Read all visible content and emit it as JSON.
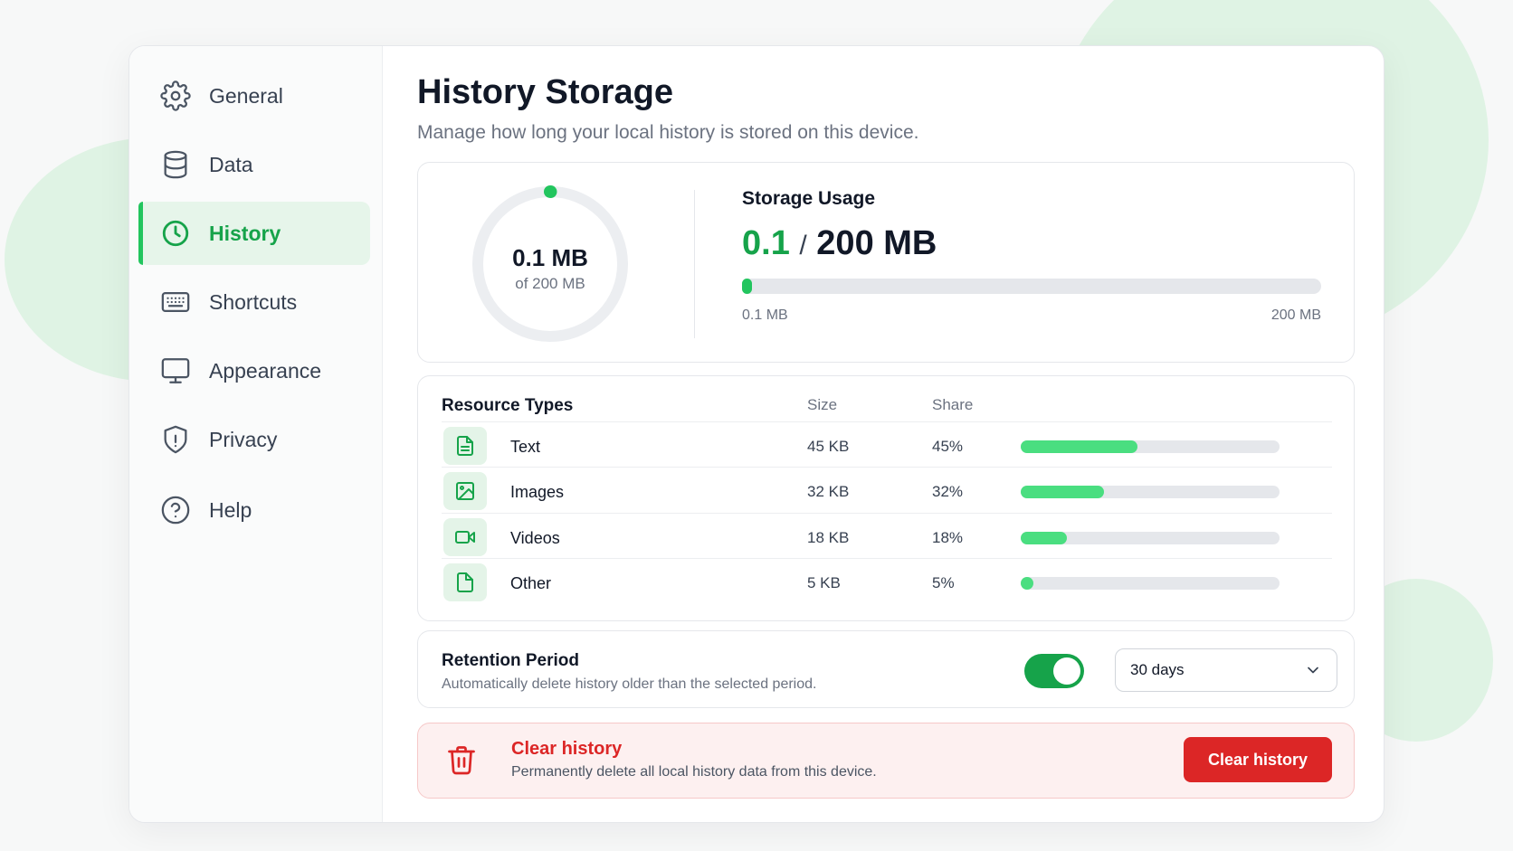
{
  "colors": {
    "accent": "#16a34a",
    "accent_light": "#22c55e",
    "danger": "#dc2626"
  },
  "sidebar": {
    "items": [
      {
        "label": "General",
        "icon": "gear-icon",
        "active": false
      },
      {
        "label": "Data",
        "icon": "database-icon",
        "active": false
      },
      {
        "label": "History",
        "icon": "clock-icon",
        "active": true
      },
      {
        "label": "Shortcuts",
        "icon": "keyboard-icon",
        "active": false
      },
      {
        "label": "Appearance",
        "icon": "monitor-icon",
        "active": false
      },
      {
        "label": "Privacy",
        "icon": "shield-icon",
        "active": false
      },
      {
        "label": "Help",
        "icon": "help-circle-icon",
        "active": false
      }
    ]
  },
  "main": {
    "title": "History Storage",
    "subtitle": "Manage how long your local history is stored on this device."
  },
  "usage": {
    "donut_value": "0.1 MB",
    "donut_sub": "of 200 MB",
    "title": "Storage Usage",
    "used": "0.1",
    "separator": "/",
    "total": "200 MB",
    "fraction": 0.0005,
    "min_label": "0.1 MB",
    "max_label": "200 MB"
  },
  "resources": {
    "title": "Resource Types",
    "col_size": "Size",
    "col_share": "Share",
    "rows": [
      {
        "name": "Text",
        "size": "45 KB",
        "share": "45%",
        "fraction": 0.45,
        "icon": "file-text-icon"
      },
      {
        "name": "Images",
        "size": "32 KB",
        "share": "32%",
        "fraction": 0.32,
        "icon": "image-icon"
      },
      {
        "name": "Videos",
        "size": "18 KB",
        "share": "18%",
        "fraction": 0.18,
        "icon": "video-icon"
      },
      {
        "name": "Other",
        "size": "5 KB",
        "share": "5%",
        "fraction": 0.05,
        "icon": "file-icon"
      }
    ]
  },
  "retention": {
    "title": "Retention Period",
    "description": "Automatically delete history older than the selected period.",
    "enabled": true,
    "selected": "30 days"
  },
  "danger": {
    "title": "Clear history",
    "description": "Permanently delete all local history data from this device.",
    "button_label": "Clear history",
    "icon": "trash-icon"
  }
}
